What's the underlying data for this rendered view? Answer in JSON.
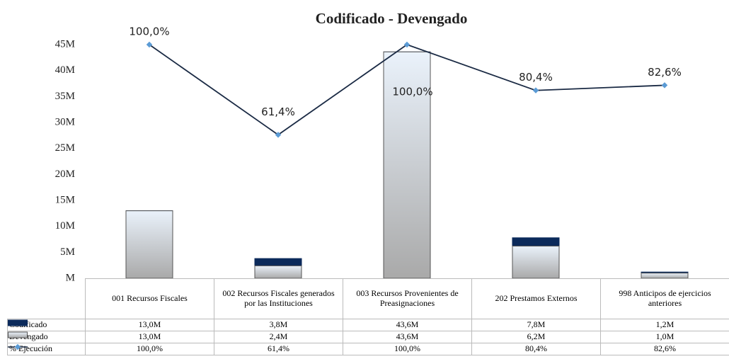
{
  "chart_data": {
    "type": "bar-line",
    "title": "Codificado - Devengado",
    "categories": [
      "001 Recursos Fiscales",
      "002 Recursos Fiscales generados por las Instituciones",
      "003 Recursos Provenientes de Preasignaciones",
      "202 Prestamos Externos",
      "998 Anticipos de ejercicios anteriores"
    ],
    "series": [
      {
        "name": "Codificado",
        "type": "bar",
        "color": "#0b2a5b",
        "values": [
          13.0,
          3.8,
          43.6,
          7.8,
          1.2
        ],
        "value_labels": [
          "13,0M",
          "3,8M",
          "43,6M",
          "7,8M",
          "1,2M"
        ]
      },
      {
        "name": "Devengado",
        "type": "bar",
        "color": "#d4d4d4",
        "values": [
          13.0,
          2.4,
          43.6,
          6.2,
          1.0
        ],
        "value_labels": [
          "13,0M",
          "2,4M",
          "43,6M",
          "6,2M",
          "1,0M"
        ]
      },
      {
        "name": "% Ejecución",
        "type": "line",
        "axis": "y2",
        "color": "#1a2a44",
        "marker_color": "#5b9bd5",
        "values": [
          100.0,
          61.4,
          100.0,
          80.4,
          82.6
        ],
        "value_labels": [
          "100,0%",
          "61,4%",
          "100,0%",
          "80,4%",
          "82,6%"
        ]
      }
    ],
    "ylim": [
      0,
      45
    ],
    "yticks": [
      {
        "value": 0,
        "label": "M"
      },
      {
        "value": 5,
        "label": "5M"
      },
      {
        "value": 10,
        "label": "10M"
      },
      {
        "value": 15,
        "label": "15M"
      },
      {
        "value": 20,
        "label": "20M"
      },
      {
        "value": 25,
        "label": "25M"
      },
      {
        "value": 30,
        "label": "30M"
      },
      {
        "value": 35,
        "label": "35M"
      },
      {
        "value": 40,
        "label": "40M"
      },
      {
        "value": 45,
        "label": "45M"
      }
    ],
    "y2lim": [
      0,
      100
    ],
    "grid": false
  }
}
